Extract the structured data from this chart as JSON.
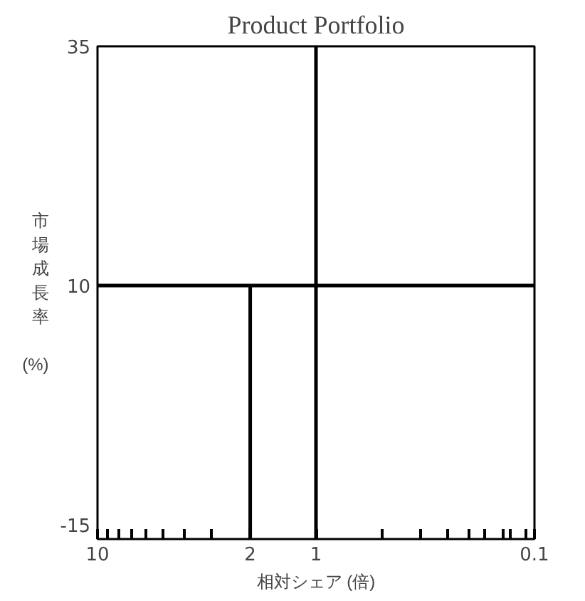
{
  "chart_data": {
    "type": "line",
    "title": "Product Portfolio",
    "xlabel": "相対シェア (倍)",
    "ylabel": "市場成長率 (%)",
    "log": "x",
    "xlim": [
      10,
      0.1
    ],
    "ylim": [
      -16.5,
      35
    ],
    "xticks": [
      10,
      {
        "value": 9,
        "label": null
      },
      {
        "value": 8,
        "label": null
      },
      {
        "value": 7,
        "label": null
      },
      {
        "value": 6,
        "label": null
      },
      {
        "value": 5,
        "label": null
      },
      {
        "value": 4,
        "label": null
      },
      {
        "value": 3,
        "label": null
      },
      2,
      1,
      {
        "value": 0.5,
        "label": null
      },
      {
        "value": 0.33,
        "label": null
      },
      {
        "value": 0.25,
        "label": null
      },
      {
        "value": 0.2,
        "label": null
      },
      {
        "value": 0.17,
        "label": null
      },
      {
        "value": 0.14,
        "label": null
      },
      {
        "value": 0.13,
        "label": null
      },
      {
        "value": 0.11,
        "label": null
      },
      0.1
    ],
    "yticks": [
      -15,
      10,
      35
    ],
    "series": [
      {
        "color": "#000000",
        "x": [
          2,
          2
        ],
        "values": [
          -16.5,
          10
        ]
      }
    ],
    "ref_lines": [
      {
        "axis": "x",
        "value": 1,
        "color": "#000000"
      },
      {
        "axis": "y",
        "value": 10,
        "color": "#000000"
      }
    ],
    "grid": false,
    "marker": "none",
    "line_style": "solid"
  }
}
